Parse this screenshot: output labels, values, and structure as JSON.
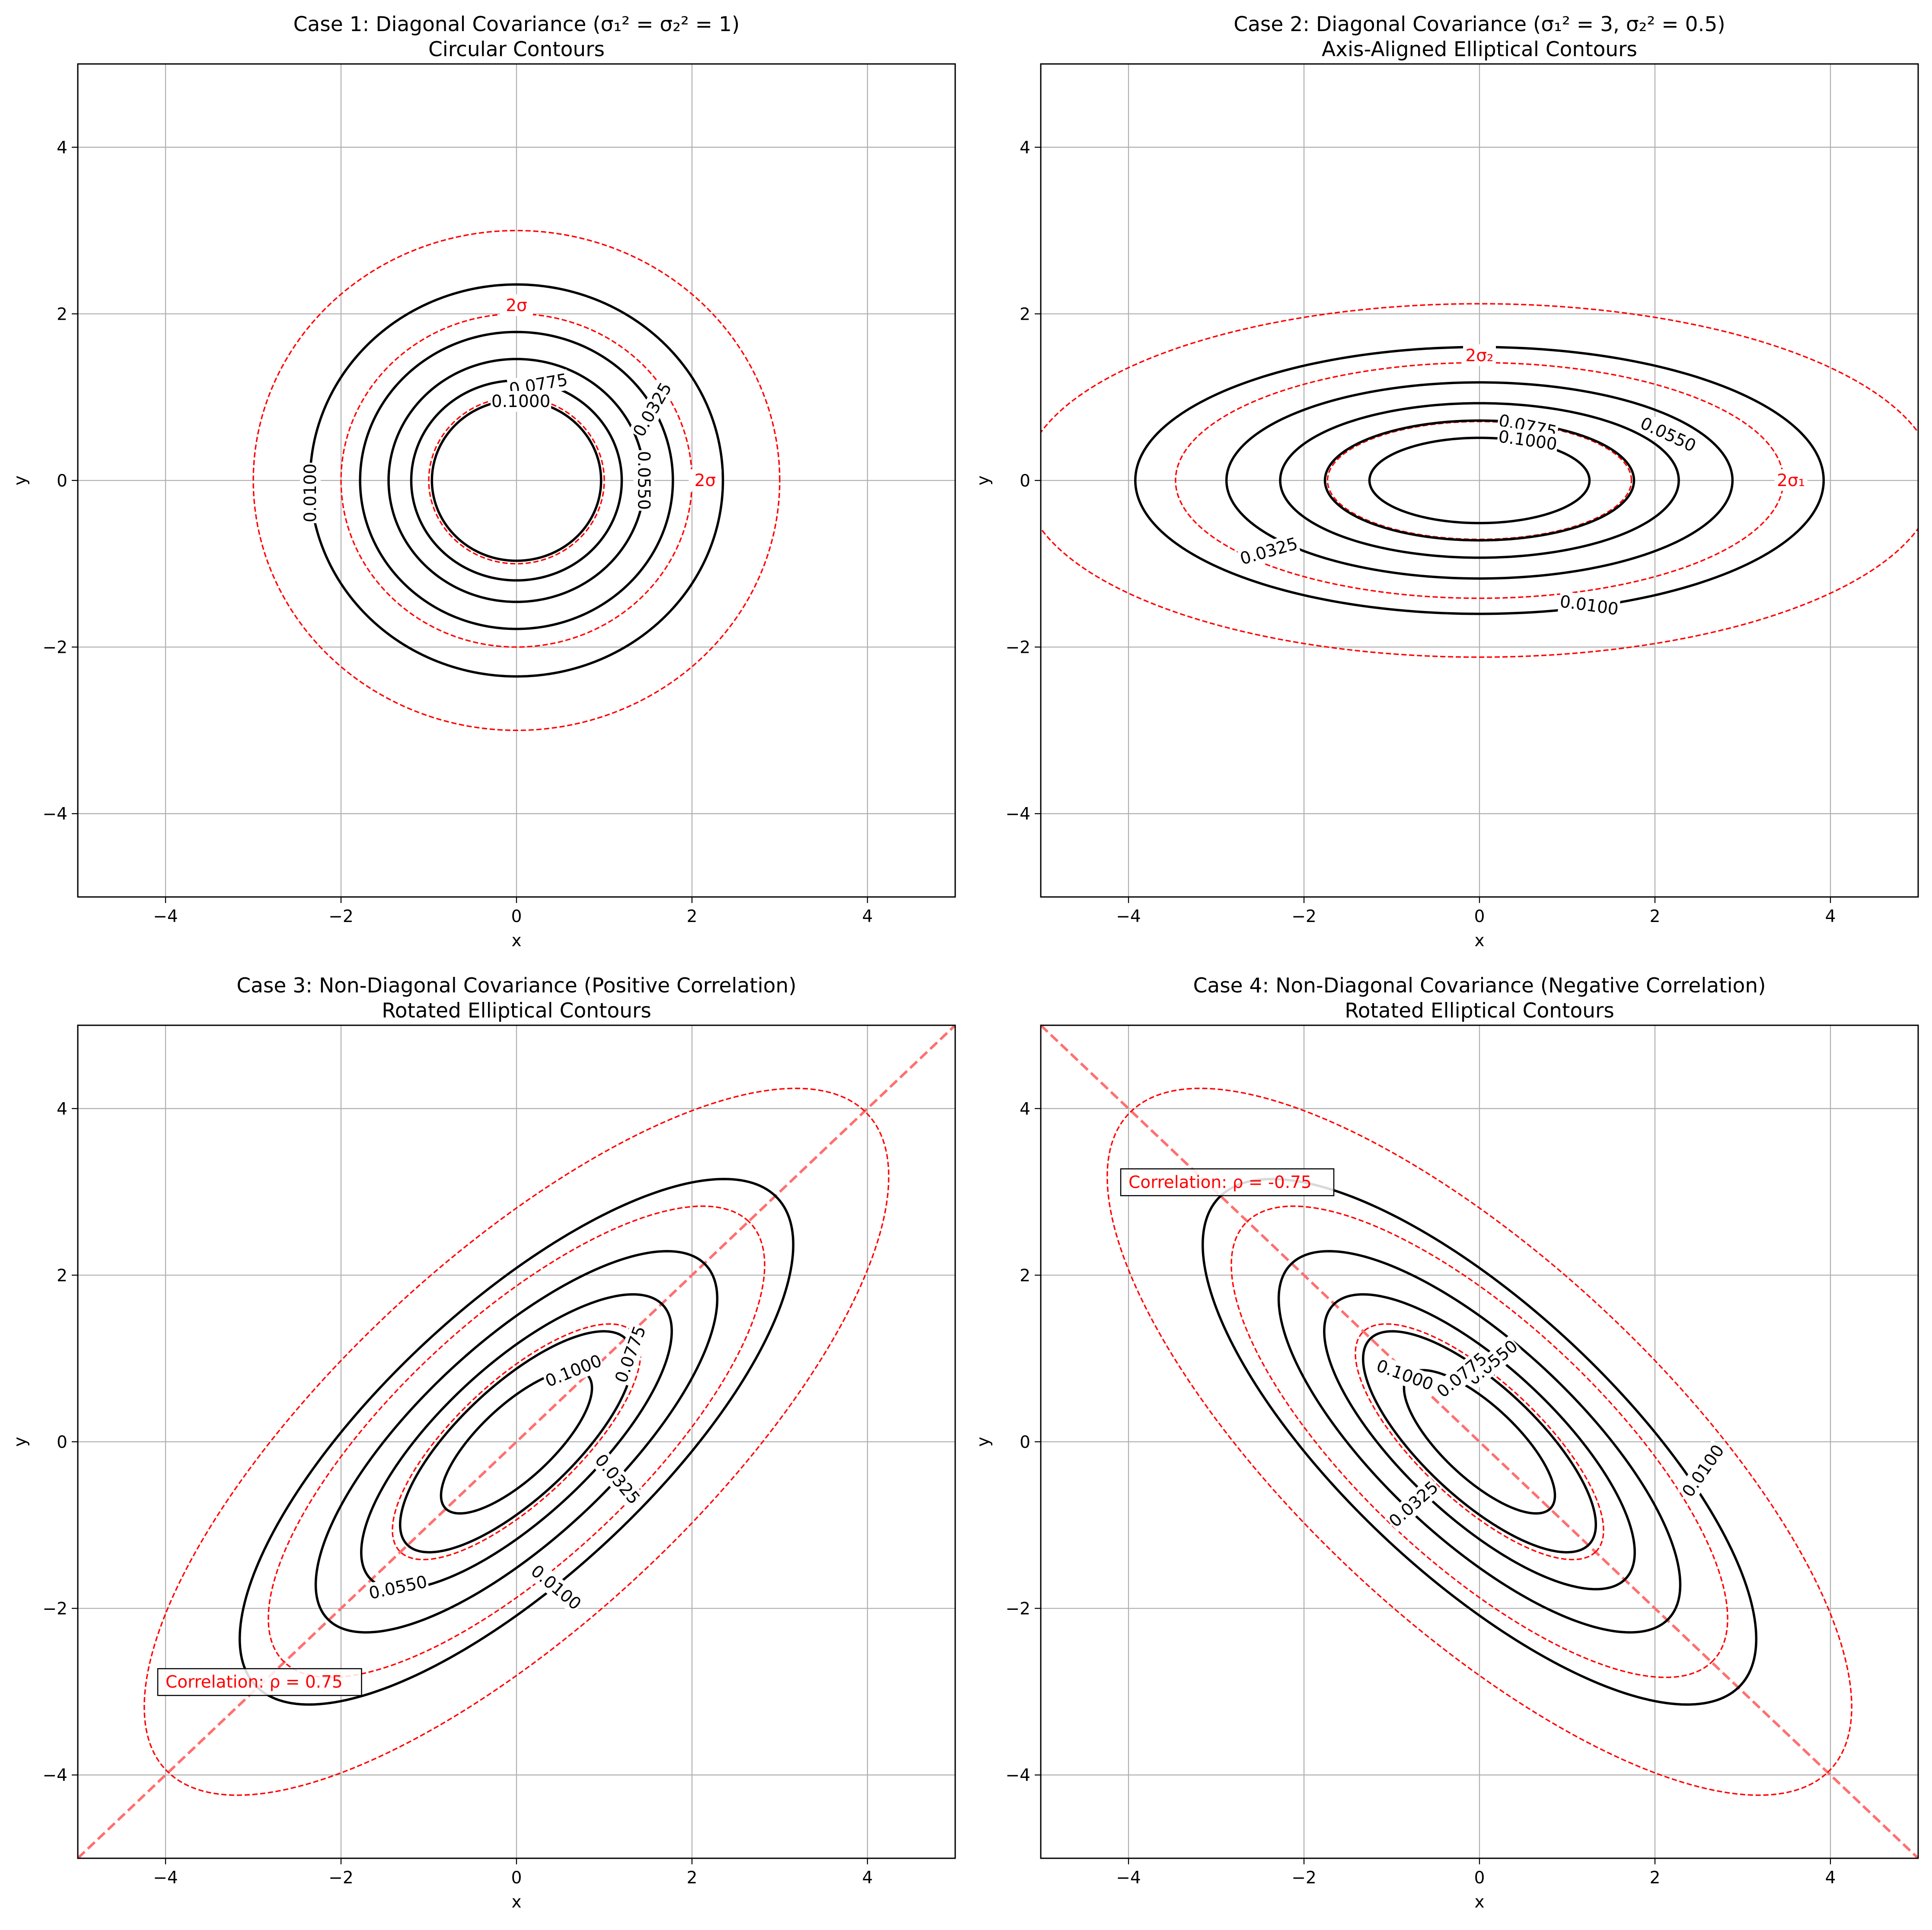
{
  "chart_data": [
    {
      "type": "contour",
      "title_lines": [
        "Case 1: Diagonal Covariance (σ₁² = σ₂² = 1)",
        "Circular Contours"
      ],
      "xlabel": "x",
      "ylabel": "y",
      "xlim": [
        -5,
        5
      ],
      "ylim": [
        -5,
        5
      ],
      "xticks": [
        -4,
        -2,
        0,
        2,
        4
      ],
      "yticks": [
        -4,
        -2,
        0,
        2,
        4
      ],
      "tick_labels": [
        "−4",
        "−2",
        "0",
        "2",
        "4"
      ],
      "grid": true,
      "mean": [
        0,
        0
      ],
      "covariance": [
        [
          1,
          0
        ],
        [
          0,
          1
        ]
      ],
      "contour_levels": [
        0.01,
        0.0325,
        0.055,
        0.0775,
        0.1
      ],
      "contour_labels": [
        {
          "text": "0.0100",
          "x": -2.35,
          "y": -0.15,
          "angle": 90
        },
        {
          "text": "0.0325",
          "x": 1.55,
          "y": 0.85,
          "angle": 60
        },
        {
          "text": "0.0550",
          "x": 1.45,
          "y": 0.0,
          "angle": -90
        },
        {
          "text": "0.0775",
          "x": 0.25,
          "y": 1.15,
          "angle": 10
        },
        {
          "text": "0.1000",
          "x": 0.05,
          "y": 0.95,
          "angle": 0
        }
      ],
      "sigma_ellipses": [
        {
          "k": 1,
          "label": ""
        },
        {
          "k": 2,
          "label": "2σ",
          "label_positions": [
            {
              "x": 0.0,
              "y": 2.1
            },
            {
              "x": 2.15,
              "y": 0.0
            }
          ]
        },
        {
          "k": 3,
          "label": ""
        }
      ]
    },
    {
      "type": "contour",
      "title_lines": [
        "Case 2: Diagonal Covariance (σ₁² = 3, σ₂² = 0.5)",
        "Axis-Aligned Elliptical Contours"
      ],
      "xlabel": "x",
      "ylabel": "y",
      "xlim": [
        -5,
        5
      ],
      "ylim": [
        -5,
        5
      ],
      "xticks": [
        -4,
        -2,
        0,
        2,
        4
      ],
      "yticks": [
        -4,
        -2,
        0,
        2,
        4
      ],
      "tick_labels": [
        "−4",
        "−2",
        "0",
        "2",
        "4"
      ],
      "grid": true,
      "mean": [
        0,
        0
      ],
      "covariance": [
        [
          3,
          0
        ],
        [
          0,
          0.5
        ]
      ],
      "contour_levels": [
        0.01,
        0.0325,
        0.055,
        0.0775,
        0.1
      ],
      "contour_labels": [
        {
          "text": "0.0100",
          "x": 1.25,
          "y": -1.5,
          "angle": -8
        },
        {
          "text": "0.0325",
          "x": -2.4,
          "y": -0.85,
          "angle": 16
        },
        {
          "text": "0.0550",
          "x": 2.15,
          "y": 0.55,
          "angle": -25
        },
        {
          "text": "0.0775",
          "x": 0.55,
          "y": 0.65,
          "angle": -12
        },
        {
          "text": "0.1000",
          "x": 0.55,
          "y": 0.48,
          "angle": -8
        }
      ],
      "sigma_ellipses": [
        {
          "k": 1,
          "label": ""
        },
        {
          "k": 2,
          "label": "",
          "label_positions": [
            {
              "text": "2σ₂",
              "x": 0.0,
              "y": 1.5
            },
            {
              "text": "2σ₁",
              "x": 3.55,
              "y": 0.0
            }
          ]
        },
        {
          "k": 3,
          "label": ""
        }
      ]
    },
    {
      "type": "contour",
      "title_lines": [
        "Case 3: Non-Diagonal Covariance (Positive Correlation)",
        "Rotated Elliptical Contours"
      ],
      "xlabel": "x",
      "ylabel": "y",
      "xlim": [
        -5,
        5
      ],
      "ylim": [
        -5,
        5
      ],
      "xticks": [
        -4,
        -2,
        0,
        2,
        4
      ],
      "yticks": [
        -4,
        -2,
        0,
        2,
        4
      ],
      "tick_labels": [
        "−4",
        "−2",
        "0",
        "2",
        "4"
      ],
      "grid": true,
      "mean": [
        0,
        0
      ],
      "covariance": [
        [
          2,
          1.5
        ],
        [
          1.5,
          2
        ]
      ],
      "contour_levels": [
        0.01,
        0.0325,
        0.055,
        0.0775,
        0.1
      ],
      "contour_labels": [
        {
          "text": "0.0100",
          "x": 0.45,
          "y": -1.75,
          "angle": -40
        },
        {
          "text": "0.0325",
          "x": 1.15,
          "y": -0.45,
          "angle": -50
        },
        {
          "text": "0.0550",
          "x": -1.35,
          "y": -1.75,
          "angle": 12
        },
        {
          "text": "0.0775",
          "x": 1.3,
          "y": 1.05,
          "angle": 70
        },
        {
          "text": "0.1000",
          "x": 0.65,
          "y": 0.85,
          "angle": 22
        }
      ],
      "sigma_ellipses": [
        {
          "k": 1,
          "label": ""
        },
        {
          "k": 2,
          "label": ""
        },
        {
          "k": 3,
          "label": ""
        }
      ],
      "correlation_line": {
        "slope": 1
      },
      "annotation": {
        "text": "Correlation: ρ = 0.75",
        "x": -4.0,
        "y": -2.9
      }
    },
    {
      "type": "contour",
      "title_lines": [
        "Case 4: Non-Diagonal Covariance (Negative Correlation)",
        "Rotated Elliptical Contours"
      ],
      "xlabel": "x",
      "ylabel": "y",
      "xlim": [
        -5,
        5
      ],
      "ylim": [
        -5,
        5
      ],
      "xticks": [
        -4,
        -2,
        0,
        2,
        4
      ],
      "yticks": [
        -4,
        -2,
        0,
        2,
        4
      ],
      "tick_labels": [
        "−4",
        "−2",
        "0",
        "2",
        "4"
      ],
      "grid": true,
      "mean": [
        0,
        0
      ],
      "covariance": [
        [
          2,
          -1.5
        ],
        [
          -1.5,
          2
        ]
      ],
      "contour_labels": [
        {
          "text": "0.0100",
          "x": 2.55,
          "y": -0.35,
          "angle": 55
        },
        {
          "text": "0.0325",
          "x": -0.75,
          "y": -0.75,
          "angle": 42
        },
        {
          "text": "0.0550",
          "x": 0.15,
          "y": 0.95,
          "angle": 40
        },
        {
          "text": "0.0775",
          "x": -0.2,
          "y": 0.8,
          "angle": 40
        },
        {
          "text": "0.1000",
          "x": -0.85,
          "y": 0.8,
          "angle": -20
        }
      ],
      "contour_levels": [
        0.01,
        0.0325,
        0.055,
        0.0775,
        0.1
      ],
      "sigma_ellipses": [
        {
          "k": 1,
          "label": ""
        },
        {
          "k": 2,
          "label": ""
        },
        {
          "k": 3,
          "label": ""
        }
      ],
      "correlation_line": {
        "slope": -1
      },
      "annotation": {
        "text": "Correlation: ρ = -0.75",
        "x": -4.0,
        "y": 3.1
      }
    }
  ],
  "colors": {
    "contour": "#000000",
    "sigma": "#ff0000",
    "correlation_line": "#ff7070",
    "grid": "#b0b0b0"
  }
}
